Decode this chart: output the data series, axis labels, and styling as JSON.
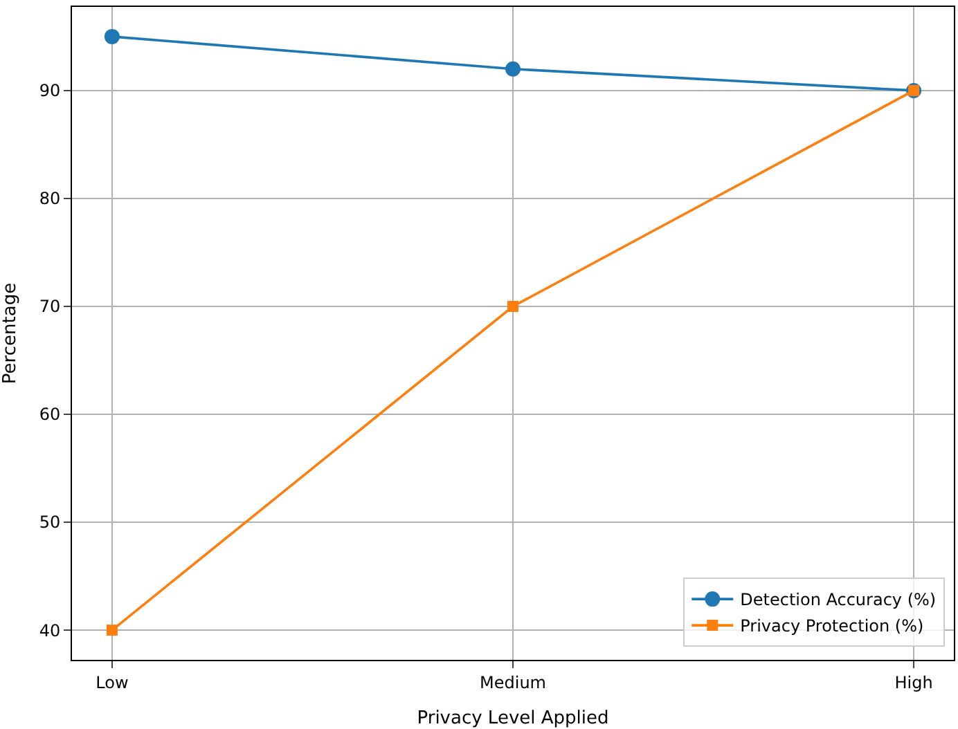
{
  "chart_data": {
    "type": "line",
    "xlabel": "Privacy Level Applied",
    "ylabel": "Percentage",
    "categories": [
      "Low",
      "Medium",
      "High"
    ],
    "series": [
      {
        "name": "Detection Accuracy (%)",
        "color": "#1f77b4",
        "values": [
          95,
          92,
          90
        ],
        "marker": "circle"
      },
      {
        "name": "Privacy Protection (%)",
        "color": "#ff7f0e",
        "values": [
          40,
          70,
          90
        ],
        "marker": "square"
      }
    ],
    "ylim": [
      37.25,
      97.75
    ],
    "yticks": [
      40,
      50,
      60,
      70,
      80,
      90
    ],
    "grid": true,
    "legend": "bottom right",
    "line_style": "solid"
  }
}
